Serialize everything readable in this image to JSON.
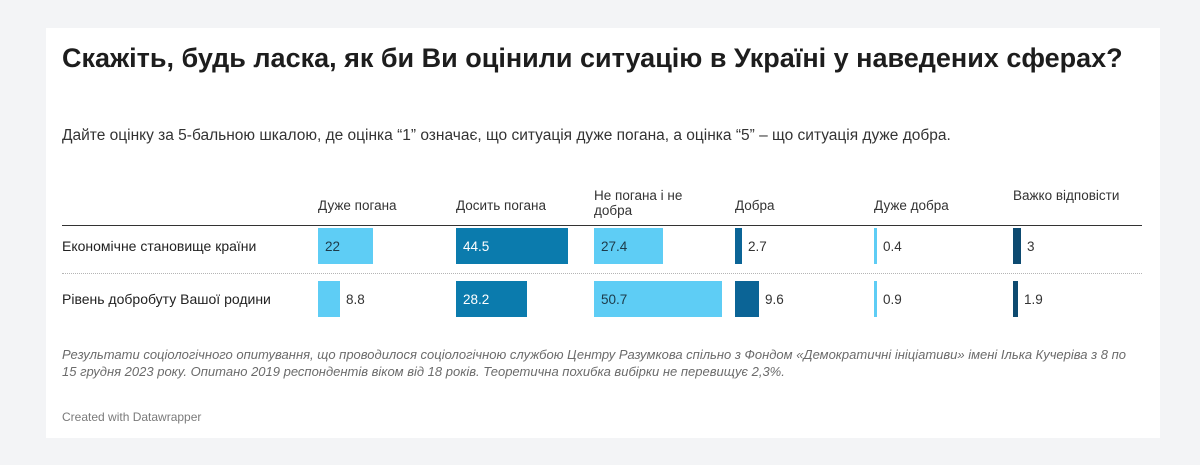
{
  "title": "Скажіть, будь ласка, як би Ви оцінили ситуацію в Україні у наведених сферах?",
  "subtitle": "Дайте оцінку за 5-бальною шкалою, де оцінка “1” означає, що ситуація дуже погана, а оцінка “5” – що ситуація дуже добра.",
  "notes": "Результати соціологічного опитування, що проводилося соціологічною службою Центру Разумкова спільно з Фондом «Демократичні ініціативи» імені Ілька Кучеріва з 8 по 15 грудня 2023 року. Опитано 2019 респондентів віком від 18 років. Теоретична похибка вибірки не перевищує 2,3%.",
  "credit": "Created with Datawrapper",
  "chart_data": {
    "type": "table",
    "columns": [
      "Дуже погана",
      "Досить погана",
      "Не погана і не добра",
      "Добра",
      "Дуже добра",
      "Важко відповісти"
    ],
    "colors": [
      "#5ecdf5",
      "#0b7bad",
      "#5ecdf5",
      "#0b6496",
      "#5ecdf5",
      "#0d4a70"
    ],
    "rows": [
      {
        "label": "Економічне становище країни",
        "values": [
          22,
          44.5,
          27.4,
          2.7,
          0.4,
          3
        ],
        "display": [
          "22",
          "44.5",
          "27.4",
          "2.7",
          "0.4",
          "3"
        ]
      },
      {
        "label": "Рівень добробуту Вашої родини",
        "values": [
          8.8,
          28.2,
          50.7,
          9.6,
          0.9,
          1.9
        ],
        "display": [
          "8.8",
          "28.2",
          "50.7",
          "9.6",
          "0.9",
          "1.9"
        ]
      }
    ]
  }
}
